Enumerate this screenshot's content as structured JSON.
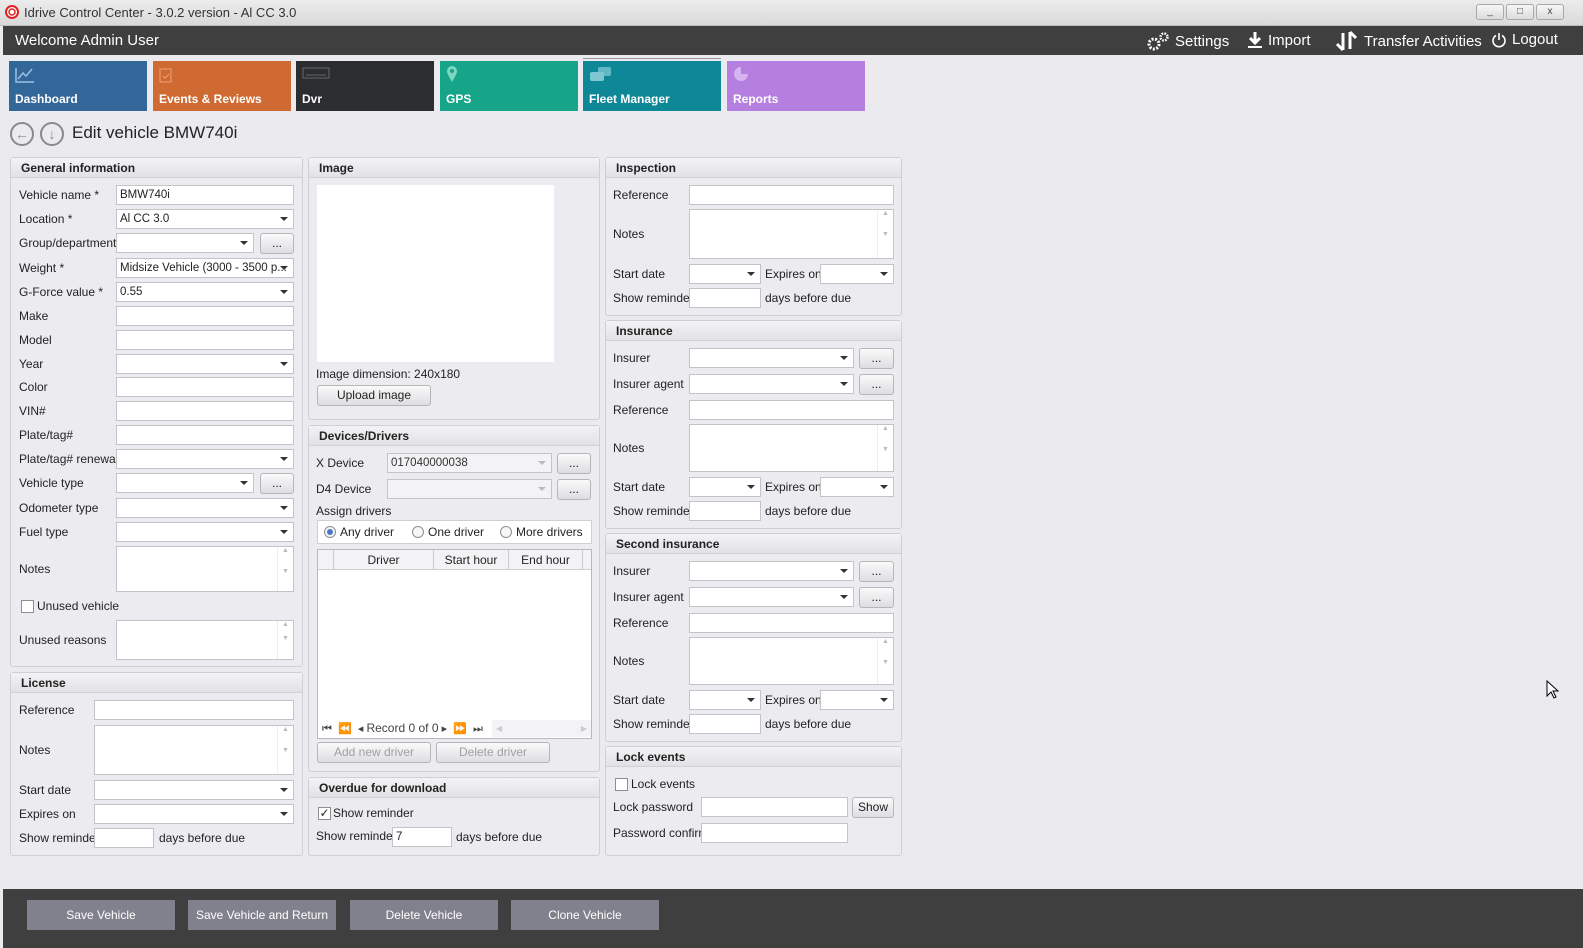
{
  "window": {
    "title": "Idrive Control Center - 3.0.2 version - Al CC 3.0",
    "minimize": "_",
    "maximize": "□",
    "close": "x"
  },
  "header": {
    "welcome": "Welcome Admin User",
    "settings": "Settings",
    "import": "Import",
    "transfer": "Transfer Activities",
    "logout": "Logout"
  },
  "tiles": [
    {
      "label": "Dashboard",
      "color": "#336699"
    },
    {
      "label": "Events & Reviews",
      "color": "#d06a33"
    },
    {
      "label": "Dvr",
      "color": "#2b2d31"
    },
    {
      "label": "GPS",
      "color": "#17a589"
    },
    {
      "label": "Fleet Manager",
      "color": "#0e8797"
    },
    {
      "label": "Reports",
      "color": "#b57fe0"
    }
  ],
  "page": {
    "title": "Edit vehicle BMW740i"
  },
  "general": {
    "title": "General information",
    "vehicle_name": "Vehicle name *",
    "vehicle_name_value": "BMW740i",
    "location": "Location *",
    "location_value": "Al CC 3.0",
    "group": "Group/department",
    "weight": "Weight *",
    "weight_value": "Midsize Vehicle (3000 - 3500 p...",
    "gforce": "G-Force value *",
    "gforce_value": "0.55",
    "make": "Make",
    "model": "Model",
    "year": "Year",
    "color": "Color",
    "vin": "VIN#",
    "plate": "Plate/tag#",
    "plate_renewal": "Plate/tag# renewal",
    "vehicle_type": "Vehicle type",
    "odometer": "Odometer type",
    "fuel": "Fuel type",
    "notes": "Notes",
    "unused": "Unused vehicle",
    "unused_reasons": "Unused reasons",
    "dots": "..."
  },
  "license": {
    "title": "License",
    "reference": "Reference",
    "notes": "Notes",
    "start": "Start date",
    "expires": "Expires on",
    "reminder": "Show reminder",
    "days": "days before due"
  },
  "image": {
    "title": "Image",
    "dimension": "Image dimension:  240x180",
    "upload": "Upload image"
  },
  "devices": {
    "title": "Devices/Drivers",
    "x_device": "X Device",
    "x_device_value": "017040000038",
    "d4_device": "D4 Device",
    "assign": "Assign drivers",
    "radios": [
      "Any driver",
      "One driver",
      "More drivers"
    ],
    "selected": "Any driver",
    "columns": [
      "Driver",
      "Start hour",
      "End hour"
    ],
    "record": "Record 0 of 0",
    "add": "Add new driver",
    "delete": "Delete driver"
  },
  "overdue": {
    "title": "Overdue for download",
    "show_reminder_check": "Show reminder",
    "checked": true,
    "reminder": "Show reminder",
    "reminder_value": "7",
    "days": "days before due"
  },
  "inspection": {
    "title": "Inspection",
    "reference": "Reference",
    "notes": "Notes",
    "start": "Start date",
    "expires": "Expires on",
    "reminder": "Show reminder",
    "days": "days before due"
  },
  "insurance": {
    "title": "Insurance",
    "insurer": "Insurer",
    "agent": "Insurer agent",
    "reference": "Reference",
    "notes": "Notes",
    "start": "Start date",
    "expires": "Expires on",
    "reminder": "Show reminder",
    "days": "days before due"
  },
  "second_insurance": {
    "title": "Second insurance",
    "insurer": "Insurer",
    "agent": "Insurer agent",
    "reference": "Reference",
    "notes": "Notes",
    "start": "Start date",
    "expires": "Expires on",
    "reminder": "Show reminder",
    "days": "days before due"
  },
  "lock": {
    "title": "Lock events",
    "lock_events": "Lock events",
    "password": "Lock password",
    "show": "Show",
    "confirm": "Password confirm"
  },
  "footer": {
    "save": "Save Vehicle",
    "save_return": "Save Vehicle and Return",
    "delete": "Delete Vehicle",
    "clone": "Clone Vehicle"
  }
}
